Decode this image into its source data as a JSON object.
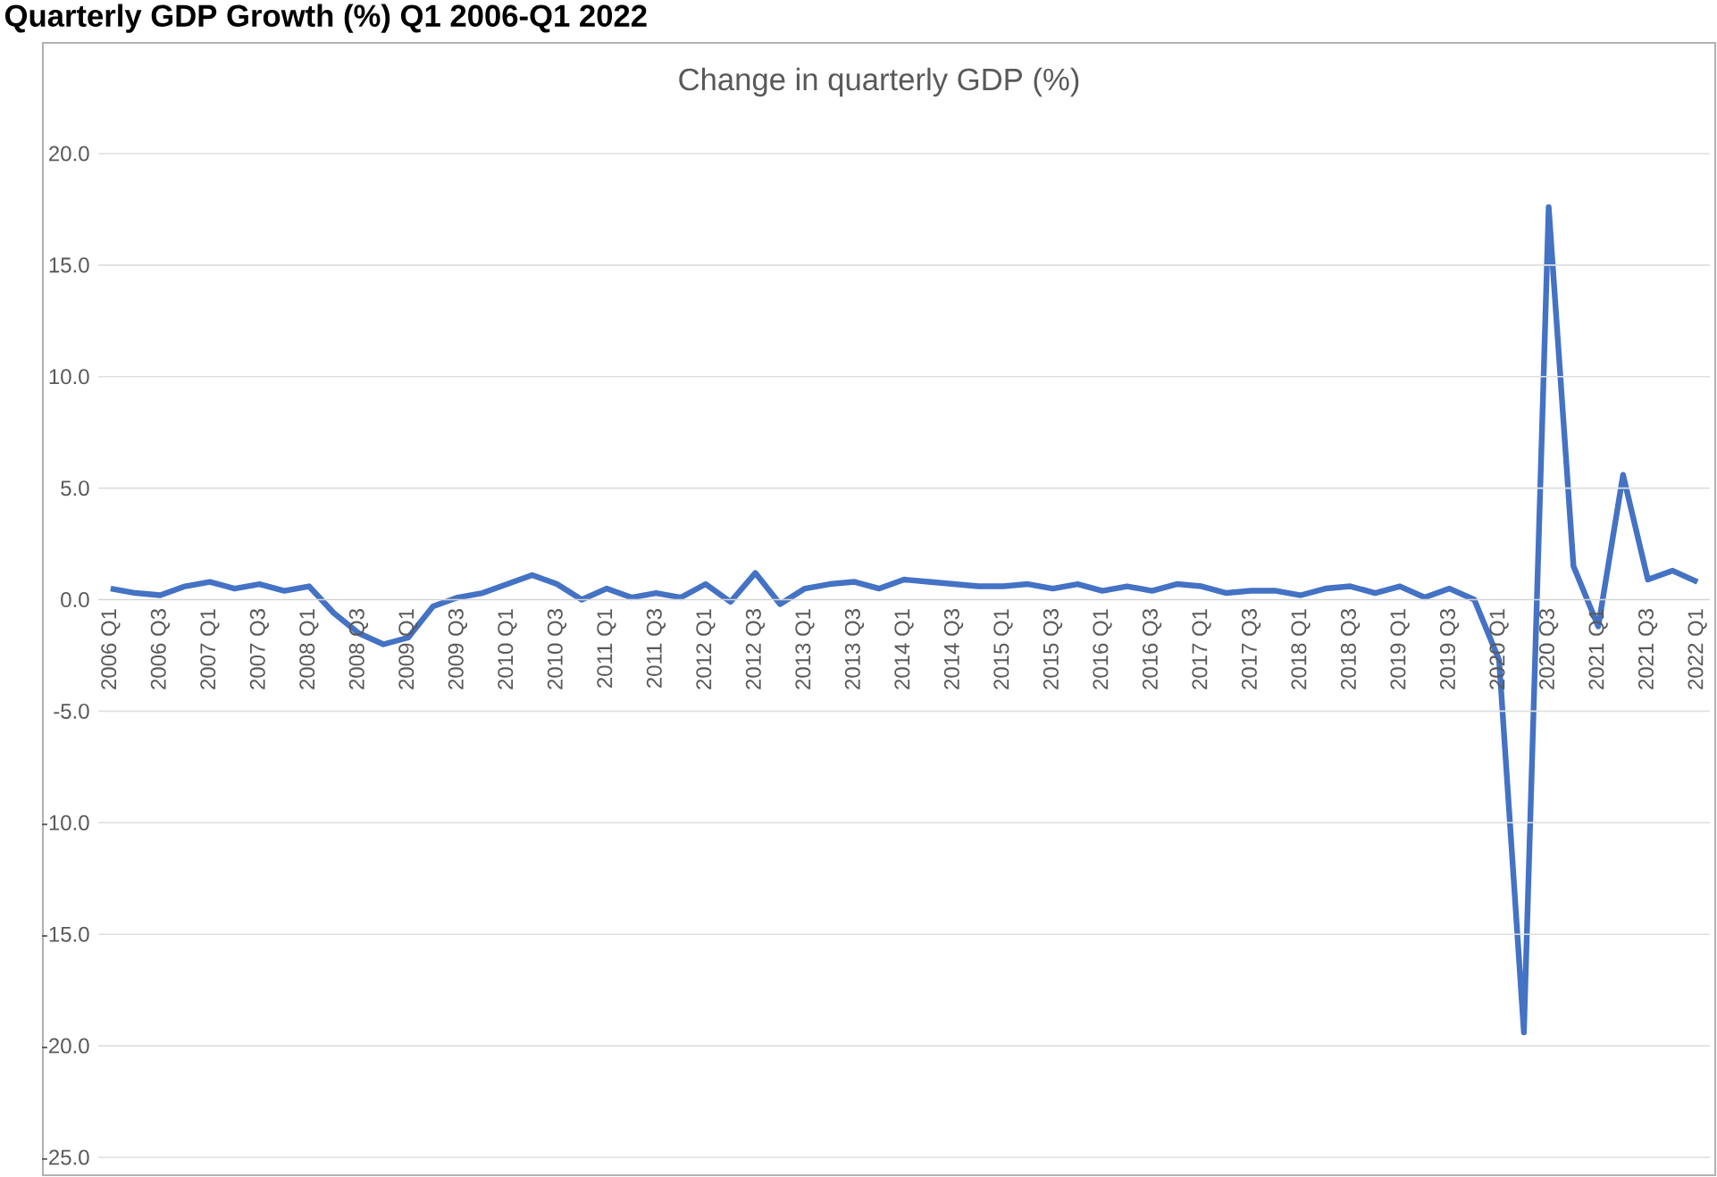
{
  "chart_data": {
    "type": "line",
    "title": "Change in quarterly GDP (%)",
    "annotations": [
      "Quarterly GDP Growth (%) Q1 2006-Q1 2022"
    ],
    "categories": [
      "2006 Q1",
      null,
      "2006 Q3",
      null,
      "2007 Q1",
      null,
      "2007 Q3",
      null,
      "2008 Q1",
      null,
      "2008 Q3",
      null,
      "2009 Q1",
      null,
      "2009 Q3",
      null,
      "2010 Q1",
      null,
      "2010 Q3",
      null,
      "2011 Q1",
      null,
      "2011 Q3",
      null,
      "2012 Q1",
      null,
      "2012 Q3",
      null,
      "2013 Q1",
      null,
      "2013 Q3",
      null,
      "2014 Q1",
      null,
      "2014 Q3",
      null,
      "2015 Q1",
      null,
      "2015 Q3",
      null,
      "2016 Q1",
      null,
      "2016 Q3",
      null,
      "2017 Q1",
      null,
      "2017 Q3",
      null,
      "2018 Q1",
      null,
      "2018 Q3",
      null,
      "2019 Q1",
      null,
      "2019 Q3",
      null,
      "2020 Q1",
      null,
      "2020 Q3",
      null,
      "2021 Q1",
      null,
      "2021 Q3",
      null,
      "2022 Q1"
    ],
    "series": [
      {
        "color": "#4472c4",
        "values": [
          0.5,
          0.3,
          0.2,
          0.6,
          0.8,
          0.5,
          0.7,
          0.4,
          0.6,
          -0.6,
          -1.5,
          -2.0,
          -1.7,
          -0.3,
          0.1,
          0.3,
          0.7,
          1.1,
          0.7,
          0.0,
          0.5,
          0.1,
          0.3,
          0.1,
          0.7,
          -0.1,
          1.2,
          -0.2,
          0.5,
          0.7,
          0.8,
          0.5,
          0.9,
          0.8,
          0.7,
          0.6,
          0.6,
          0.7,
          0.5,
          0.7,
          0.4,
          0.6,
          0.4,
          0.7,
          0.6,
          0.3,
          0.4,
          0.4,
          0.2,
          0.5,
          0.6,
          0.3,
          0.6,
          0.1,
          0.5,
          0.0,
          -2.7,
          -19.4,
          17.6,
          1.5,
          -1.2,
          5.6,
          0.9,
          1.3,
          0.8
        ]
      }
    ],
    "ylim": [
      -25,
      20
    ],
    "yticks": [
      {
        "value": -25,
        "label": "-25.0"
      },
      {
        "value": -20,
        "label": "-20.0"
      },
      {
        "value": -15,
        "label": "-15.0"
      },
      {
        "value": -10,
        "label": "-10.0"
      },
      {
        "value": -5,
        "label": "-5.0"
      },
      {
        "value": 0,
        "label": "0.0"
      },
      {
        "value": 5,
        "label": "5.0"
      },
      {
        "value": 10,
        "label": "10.0"
      },
      {
        "value": 15,
        "label": "15.0"
      },
      {
        "value": 20,
        "label": "20.0"
      }
    ],
    "grid": "y",
    "legend": false,
    "marker": "none",
    "line_style": "solid"
  }
}
